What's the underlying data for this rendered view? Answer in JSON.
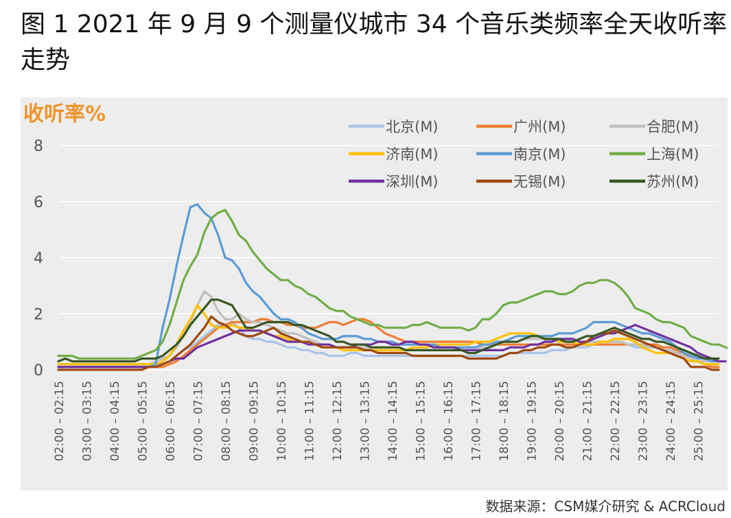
{
  "title": "图 1 2021 年 9 月 9 个测量仪城市 34 个音乐类频率全天收听率走势",
  "source": "数据来源：CSM媒介研究 & ACRCloud",
  "colors": {
    "panel_background": "#ededed",
    "ylabel": "#f0932b",
    "gridline": "#ffffff",
    "axis_text": "#555555"
  },
  "chart_data": {
    "type": "line",
    "ylabel": "收听率%",
    "xlabel": "",
    "ylim": [
      0,
      8
    ],
    "yticks": [
      0,
      2,
      4,
      6,
      8
    ],
    "grid": true,
    "legend_position": "top-right",
    "x_start": "02:00",
    "interval_minutes": 15,
    "x_tick_labels": [
      "02:00 – 02:15",
      "03:00 – 03:15",
      "04:00 – 04:15",
      "05:00 – 05:15",
      "06:00 – 06:15",
      "07:00 – 07:15",
      "08:00 – 08:15",
      "09:00 – 09:15",
      "10:00 – 10:15",
      "11:00 – 11:15",
      "12:00 – 12:15",
      "13:00 – 13:15",
      "14:00 – 14:15",
      "15:00 – 15:15",
      "16:00 – 16:15",
      "17:00 – 17:15",
      "18:00 – 18:15",
      "19:00 – 19:15",
      "20:00 – 20:15",
      "21:00 – 21:15",
      "22:00 – 22:15",
      "23:00 – 23:15",
      "24:00 – 24:15",
      "25:00 – 25:15"
    ],
    "series": [
      {
        "name": "北京(M)",
        "color": "#a9c4e8",
        "values": [
          0.2,
          0.2,
          0.2,
          0.2,
          0.2,
          0.2,
          0.2,
          0.2,
          0.2,
          0.2,
          0.2,
          0.2,
          0.2,
          0.2,
          0.2,
          0.2,
          0.3,
          0.5,
          0.7,
          0.8,
          1.0,
          1.2,
          1.4,
          1.6,
          1.6,
          1.7,
          1.5,
          1.2,
          1.1,
          1.1,
          1.0,
          1.0,
          0.9,
          0.8,
          0.8,
          0.7,
          0.7,
          0.6,
          0.6,
          0.5,
          0.5,
          0.5,
          0.6,
          0.6,
          0.5,
          0.5,
          0.5,
          0.5,
          0.5,
          0.5,
          0.5,
          0.5,
          0.5,
          0.5,
          0.5,
          0.5,
          0.5,
          0.5,
          0.5,
          0.5,
          0.5,
          0.5,
          0.5,
          0.5,
          0.5,
          0.6,
          0.6,
          0.6,
          0.6,
          0.6,
          0.6,
          0.7,
          0.7,
          0.7,
          0.8,
          0.8,
          0.8,
          0.9,
          0.9,
          0.9,
          0.9,
          0.9,
          0.9,
          0.8,
          0.8,
          0.8,
          0.8,
          0.7,
          0.7,
          0.6,
          0.6,
          0.5,
          0.5,
          0.4,
          0.3,
          0.3
        ]
      },
      {
        "name": "广州(M)",
        "color": "#ed7d31",
        "values": [
          0.1,
          0.1,
          0.1,
          0.1,
          0.1,
          0.1,
          0.1,
          0.1,
          0.1,
          0.1,
          0.1,
          0.1,
          0.1,
          0.1,
          0.1,
          0.1,
          0.2,
          0.3,
          0.5,
          0.7,
          0.9,
          1.1,
          1.3,
          1.5,
          1.6,
          1.7,
          1.7,
          1.7,
          1.7,
          1.8,
          1.8,
          1.7,
          1.7,
          1.6,
          1.6,
          1.5,
          1.5,
          1.5,
          1.6,
          1.7,
          1.7,
          1.6,
          1.7,
          1.8,
          1.8,
          1.7,
          1.5,
          1.3,
          1.2,
          1.1,
          1.0,
          1.0,
          1.0,
          1.0,
          1.0,
          1.0,
          1.0,
          1.0,
          1.0,
          1.0,
          1.0,
          0.9,
          0.9,
          0.9,
          0.9,
          0.9,
          0.9,
          0.9,
          0.9,
          0.9,
          0.9,
          0.9,
          0.9,
          0.9,
          0.9,
          0.9,
          0.9,
          0.9,
          0.9,
          0.9,
          0.9,
          0.9,
          0.9,
          0.9,
          0.9,
          0.9,
          0.9,
          0.8,
          0.8,
          0.7,
          0.6,
          0.4,
          0.3,
          0.2,
          0.1,
          0.1
        ]
      },
      {
        "name": "合肥(M)",
        "color": "#bfbfbf",
        "values": [
          0.2,
          0.2,
          0.2,
          0.2,
          0.2,
          0.2,
          0.2,
          0.2,
          0.2,
          0.2,
          0.2,
          0.2,
          0.2,
          0.2,
          0.3,
          0.4,
          0.5,
          0.8,
          1.2,
          1.7,
          2.3,
          2.8,
          2.6,
          2.1,
          1.8,
          1.8,
          2.0,
          1.8,
          1.7,
          1.7,
          1.6,
          1.5,
          1.4,
          1.3,
          1.3,
          1.2,
          1.1,
          1.0,
          0.9,
          0.9,
          0.8,
          0.8,
          0.8,
          0.8,
          0.8,
          0.7,
          0.7,
          0.7,
          0.7,
          0.7,
          0.7,
          0.7,
          0.7,
          0.7,
          0.7,
          0.7,
          0.7,
          0.7,
          0.8,
          0.8,
          0.8,
          0.8,
          0.8,
          0.9,
          1.0,
          1.0,
          1.0,
          1.1,
          1.1,
          1.1,
          1.1,
          1.1,
          1.1,
          1.1,
          1.1,
          1.0,
          1.0,
          1.0,
          1.0,
          1.0,
          1.0,
          1.0,
          0.9,
          0.9,
          0.9,
          0.8,
          0.8,
          0.7,
          0.7,
          0.6,
          0.5,
          0.4,
          0.3,
          0.3,
          0.3,
          0.3
        ]
      },
      {
        "name": "济南(M)",
        "color": "#ffc000",
        "values": [
          0.2,
          0.2,
          0.2,
          0.2,
          0.2,
          0.2,
          0.2,
          0.2,
          0.2,
          0.2,
          0.2,
          0.2,
          0.2,
          0.2,
          0.2,
          0.3,
          0.5,
          0.9,
          1.4,
          1.8,
          2.3,
          2.0,
          1.6,
          1.5,
          1.5,
          1.6,
          1.5,
          1.5,
          1.4,
          1.4,
          1.3,
          1.2,
          1.2,
          1.1,
          1.0,
          1.0,
          1.0,
          0.9,
          0.8,
          0.8,
          0.8,
          0.7,
          0.7,
          0.7,
          0.7,
          0.7,
          0.7,
          0.7,
          0.7,
          0.7,
          0.7,
          0.8,
          0.8,
          0.8,
          0.9,
          0.9,
          0.9,
          0.9,
          0.9,
          0.9,
          1.0,
          1.0,
          1.0,
          1.1,
          1.2,
          1.3,
          1.3,
          1.3,
          1.3,
          1.2,
          1.1,
          1.1,
          1.0,
          1.0,
          1.0,
          0.9,
          0.9,
          0.9,
          1.0,
          1.0,
          1.1,
          1.1,
          1.1,
          1.0,
          0.8,
          0.7,
          0.6,
          0.6,
          0.6,
          0.5,
          0.4,
          0.3,
          0.3,
          0.2,
          0.2,
          0.2
        ]
      },
      {
        "name": "南京(M)",
        "color": "#5b9bd5",
        "values": [
          0.1,
          0.1,
          0.1,
          0.1,
          0.1,
          0.1,
          0.1,
          0.1,
          0.1,
          0.1,
          0.1,
          0.1,
          0.1,
          0.1,
          0.2,
          1.5,
          2.5,
          3.7,
          4.8,
          5.8,
          5.9,
          5.6,
          5.4,
          4.8,
          4.0,
          3.9,
          3.6,
          3.1,
          2.8,
          2.6,
          2.3,
          2.0,
          1.8,
          1.8,
          1.7,
          1.5,
          1.3,
          1.2,
          1.1,
          1.1,
          1.1,
          1.2,
          1.2,
          1.2,
          1.1,
          1.1,
          1.0,
          1.0,
          1.0,
          0.9,
          0.9,
          0.9,
          0.9,
          0.9,
          0.9,
          0.8,
          0.8,
          0.8,
          0.8,
          0.8,
          0.8,
          0.9,
          0.9,
          1.0,
          1.0,
          1.1,
          1.2,
          1.2,
          1.2,
          1.2,
          1.2,
          1.2,
          1.3,
          1.3,
          1.3,
          1.4,
          1.5,
          1.7,
          1.7,
          1.7,
          1.7,
          1.6,
          1.5,
          1.4,
          1.3,
          1.3,
          1.2,
          1.1,
          1.0,
          0.8,
          0.6,
          0.5,
          0.4,
          0.4,
          0.3,
          0.3
        ]
      },
      {
        "name": "上海(M)",
        "color": "#70ad47",
        "values": [
          0.5,
          0.5,
          0.5,
          0.4,
          0.4,
          0.4,
          0.4,
          0.4,
          0.4,
          0.4,
          0.4,
          0.4,
          0.5,
          0.6,
          0.7,
          1.0,
          1.6,
          2.4,
          3.2,
          3.7,
          4.1,
          4.9,
          5.4,
          5.6,
          5.7,
          5.3,
          4.8,
          4.6,
          4.2,
          3.9,
          3.6,
          3.4,
          3.2,
          3.2,
          3.0,
          2.9,
          2.7,
          2.6,
          2.4,
          2.2,
          2.1,
          2.1,
          1.9,
          1.8,
          1.7,
          1.6,
          1.6,
          1.5,
          1.5,
          1.5,
          1.5,
          1.6,
          1.6,
          1.7,
          1.6,
          1.5,
          1.5,
          1.5,
          1.5,
          1.4,
          1.5,
          1.8,
          1.8,
          2.0,
          2.3,
          2.4,
          2.4,
          2.5,
          2.6,
          2.7,
          2.8,
          2.8,
          2.7,
          2.7,
          2.8,
          3.0,
          3.1,
          3.1,
          3.2,
          3.2,
          3.1,
          2.9,
          2.6,
          2.2,
          2.1,
          2.0,
          1.8,
          1.7,
          1.7,
          1.6,
          1.5,
          1.2,
          1.1,
          1.0,
          0.9,
          0.9,
          0.8,
          0.7
        ]
      },
      {
        "name": "深圳(M)",
        "color": "#7030a0",
        "values": [
          0.1,
          0.1,
          0.1,
          0.1,
          0.1,
          0.1,
          0.1,
          0.1,
          0.1,
          0.1,
          0.1,
          0.1,
          0.1,
          0.1,
          0.1,
          0.2,
          0.3,
          0.4,
          0.4,
          0.6,
          0.8,
          0.9,
          1.0,
          1.1,
          1.2,
          1.3,
          1.4,
          1.4,
          1.4,
          1.4,
          1.3,
          1.2,
          1.1,
          1.0,
          1.0,
          1.0,
          0.9,
          0.9,
          0.9,
          0.9,
          0.8,
          0.8,
          0.8,
          0.9,
          0.9,
          0.9,
          1.0,
          1.0,
          0.9,
          0.9,
          1.0,
          1.0,
          0.9,
          0.9,
          0.8,
          0.8,
          0.8,
          0.8,
          0.7,
          0.7,
          0.7,
          0.7,
          0.7,
          0.7,
          0.7,
          0.8,
          0.8,
          0.8,
          0.9,
          0.9,
          1.0,
          1.0,
          1.1,
          1.1,
          1.1,
          1.0,
          1.0,
          1.1,
          1.2,
          1.3,
          1.3,
          1.4,
          1.5,
          1.6,
          1.5,
          1.4,
          1.3,
          1.2,
          1.1,
          1.0,
          0.9,
          0.8,
          0.6,
          0.5,
          0.4,
          0.3,
          0.3
        ]
      },
      {
        "name": "无锡(M)",
        "color": "#9e480e",
        "values": [
          0.0,
          0.0,
          0.0,
          0.0,
          0.0,
          0.0,
          0.0,
          0.0,
          0.0,
          0.0,
          0.0,
          0.0,
          0.0,
          0.1,
          0.1,
          0.2,
          0.3,
          0.5,
          0.7,
          0.9,
          1.2,
          1.5,
          1.9,
          1.7,
          1.6,
          1.4,
          1.3,
          1.2,
          1.2,
          1.3,
          1.4,
          1.5,
          1.3,
          1.2,
          1.1,
          1.0,
          1.0,
          0.9,
          0.8,
          0.8,
          0.8,
          0.8,
          0.8,
          0.8,
          0.7,
          0.7,
          0.6,
          0.6,
          0.6,
          0.6,
          0.6,
          0.5,
          0.5,
          0.5,
          0.5,
          0.5,
          0.5,
          0.5,
          0.5,
          0.4,
          0.4,
          0.4,
          0.4,
          0.4,
          0.5,
          0.6,
          0.6,
          0.7,
          0.7,
          0.8,
          0.8,
          0.9,
          0.9,
          0.8,
          0.8,
          0.9,
          1.0,
          1.2,
          1.3,
          1.3,
          1.4,
          1.3,
          1.2,
          1.1,
          1.0,
          0.9,
          0.8,
          0.7,
          0.6,
          0.5,
          0.4,
          0.1,
          0.1,
          0.1,
          0.0,
          0.0
        ]
      },
      {
        "name": "苏州(M)",
        "color": "#375623",
        "values": [
          0.3,
          0.4,
          0.3,
          0.3,
          0.3,
          0.3,
          0.3,
          0.3,
          0.3,
          0.3,
          0.3,
          0.3,
          0.4,
          0.4,
          0.4,
          0.5,
          0.7,
          0.9,
          1.2,
          1.6,
          1.9,
          2.2,
          2.5,
          2.5,
          2.4,
          2.3,
          1.9,
          1.5,
          1.5,
          1.6,
          1.7,
          1.7,
          1.7,
          1.7,
          1.6,
          1.6,
          1.5,
          1.4,
          1.3,
          1.2,
          1.0,
          1.0,
          0.9,
          0.9,
          0.9,
          0.8,
          0.8,
          0.8,
          0.8,
          0.8,
          0.7,
          0.7,
          0.7,
          0.7,
          0.7,
          0.7,
          0.7,
          0.7,
          0.7,
          0.6,
          0.6,
          0.7,
          0.8,
          0.9,
          1.0,
          1.0,
          1.0,
          1.1,
          1.2,
          1.2,
          1.1,
          1.1,
          1.1,
          1.0,
          1.0,
          1.1,
          1.2,
          1.2,
          1.3,
          1.4,
          1.5,
          1.4,
          1.3,
          1.2,
          1.1,
          1.1,
          1.0,
          1.0,
          0.9,
          0.8,
          0.7,
          0.6,
          0.5,
          0.4,
          0.4,
          0.4
        ]
      }
    ]
  }
}
